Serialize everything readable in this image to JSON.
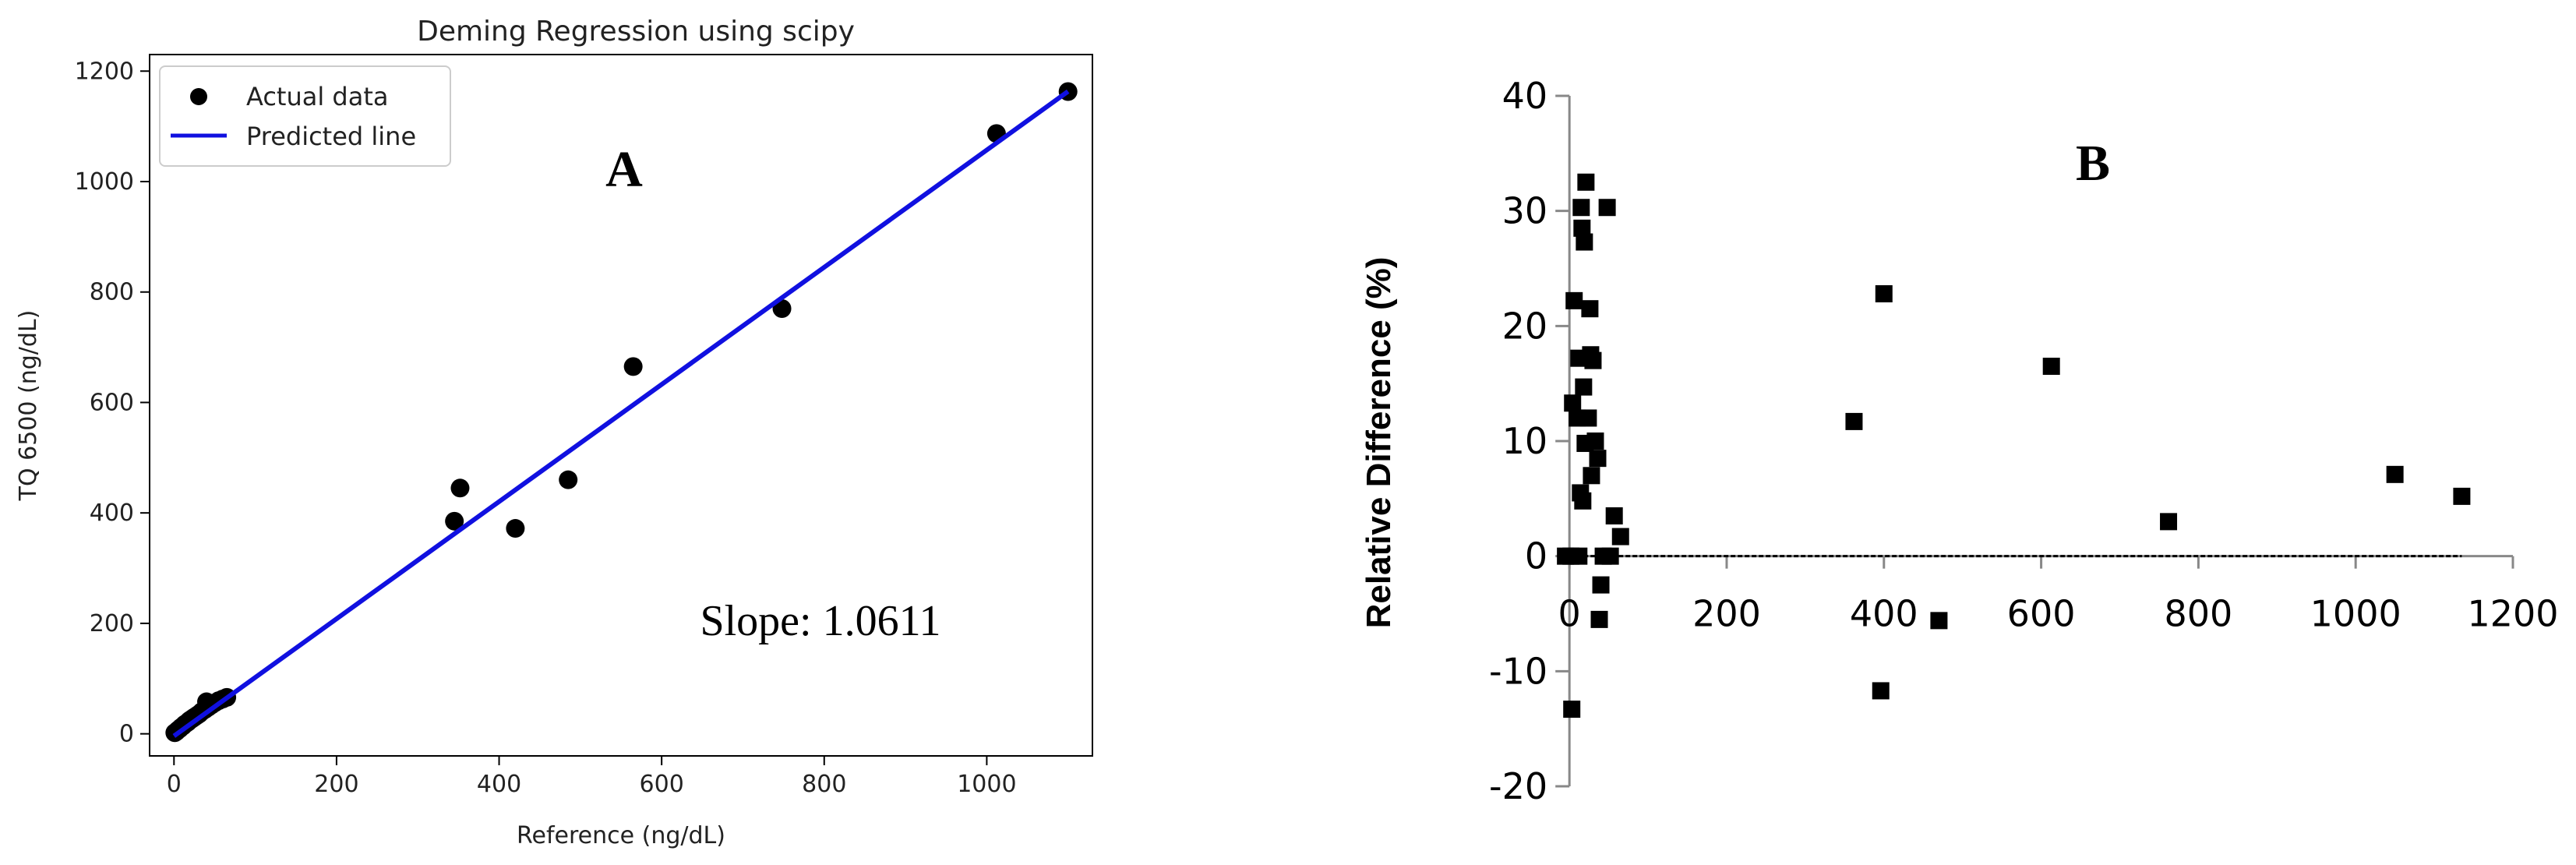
{
  "chart_data": [
    {
      "panel": "A",
      "type": "scatter",
      "title": "Deming Regression using scipy",
      "xlabel": "Reference (ng/dL)",
      "ylabel": "TQ 6500 (ng/dL)",
      "xlim": [
        -30,
        1130
      ],
      "ylim": [
        -40,
        1230
      ],
      "xticks": [
        0,
        200,
        400,
        600,
        800,
        1000
      ],
      "yticks": [
        0,
        200,
        400,
        600,
        800,
        1000,
        1200
      ],
      "grid": false,
      "legend_position": "top-left",
      "legend": [
        {
          "label": "Actual data",
          "marker": "circle",
          "color": "#000000"
        },
        {
          "label": "Predicted line",
          "marker": "line",
          "color": "#1010e0"
        }
      ],
      "annotation": "Slope: 1.0611",
      "panel_letter": "A",
      "fit_line": {
        "slope": 1.0611,
        "intercept": -4,
        "x_range": [
          0,
          1100
        ]
      },
      "series": [
        {
          "name": "Actual data",
          "color": "#000000",
          "points": [
            [
              1,
              2
            ],
            [
              3,
              4
            ],
            [
              5,
              7
            ],
            [
              7,
              9
            ],
            [
              9,
              12
            ],
            [
              11,
              14
            ],
            [
              13,
              17
            ],
            [
              15,
              19
            ],
            [
              17,
              21
            ],
            [
              19,
              24
            ],
            [
              21,
              26
            ],
            [
              23,
              28
            ],
            [
              25,
              30
            ],
            [
              28,
              33
            ],
            [
              31,
              36
            ],
            [
              34,
              40
            ],
            [
              38,
              44
            ],
            [
              42,
              48
            ],
            [
              46,
              52
            ],
            [
              50,
              56
            ],
            [
              55,
              60
            ],
            [
              60,
              63
            ],
            [
              65,
              66
            ],
            [
              40,
              58
            ],
            [
              345,
              385
            ],
            [
              352,
              445
            ],
            [
              420,
              372
            ],
            [
              485,
              460
            ],
            [
              565,
              665
            ],
            [
              748,
              770
            ],
            [
              1012,
              1087
            ],
            [
              1100,
              1163
            ]
          ]
        }
      ]
    },
    {
      "panel": "B",
      "type": "scatter",
      "title": "",
      "xlabel": "",
      "ylabel": "Relative Difference (%)",
      "xlim": [
        -20,
        1200
      ],
      "ylim": [
        -20,
        40
      ],
      "xticks": [
        0,
        200,
        400,
        600,
        800,
        1000,
        1200
      ],
      "yticks": [
        -20,
        -10,
        0,
        10,
        20,
        30,
        40
      ],
      "grid": false,
      "panel_letter": "B",
      "zero_line": {
        "y": 0,
        "x_range": [
          0,
          1135
        ],
        "style": "dashed"
      },
      "series": [
        {
          "name": "",
          "color": "#000000",
          "marker": "square",
          "points": [
            [
              -5,
              0
            ],
            [
              2,
              0
            ],
            [
              12,
              0
            ],
            [
              4,
              13.3
            ],
            [
              6,
              22.2
            ],
            [
              10,
              12
            ],
            [
              12,
              17.2
            ],
            [
              14,
              5.5
            ],
            [
              15,
              30.3
            ],
            [
              16,
              28.5
            ],
            [
              17,
              4.8
            ],
            [
              18,
              14.7
            ],
            [
              19,
              27.3
            ],
            [
              20,
              9.8
            ],
            [
              21,
              32.5
            ],
            [
              24,
              12
            ],
            [
              26,
              21.5
            ],
            [
              27,
              17.5
            ],
            [
              28,
              7
            ],
            [
              30,
              17
            ],
            [
              33,
              10
            ],
            [
              36,
              8.5
            ],
            [
              38,
              -5.5
            ],
            [
              40,
              -2.5
            ],
            [
              43,
              0
            ],
            [
              48,
              30.3
            ],
            [
              52,
              0
            ],
            [
              57,
              3.5
            ],
            [
              65,
              1.7
            ],
            [
              3,
              -13.3
            ],
            [
              362,
              11.7
            ],
            [
              396,
              -11.7
            ],
            [
              400,
              22.8
            ],
            [
              470,
              -5.6
            ],
            [
              613,
              16.5
            ],
            [
              762,
              3
            ],
            [
              1050,
              7.1
            ],
            [
              1135,
              5.2
            ]
          ]
        }
      ]
    }
  ]
}
